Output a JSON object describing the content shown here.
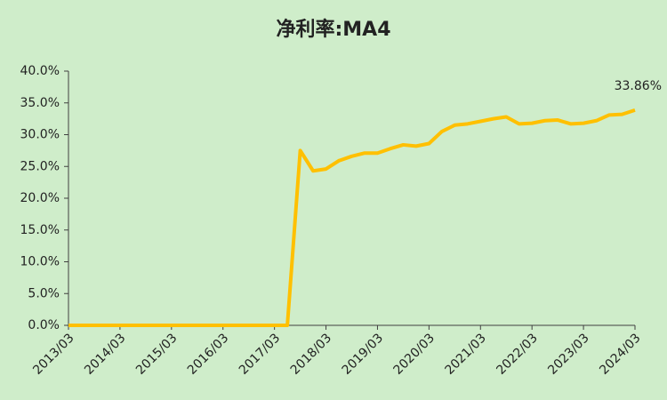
{
  "chart_data": {
    "type": "line",
    "title": "净利率:MA4",
    "categories": [
      "2013/03",
      null,
      null,
      null,
      "2014/03",
      null,
      null,
      null,
      "2015/03",
      null,
      null,
      null,
      "2016/03",
      null,
      null,
      null,
      "2017/03",
      null,
      null,
      null,
      "2018/03",
      null,
      null,
      null,
      "2019/03",
      null,
      null,
      null,
      "2020/03",
      null,
      null,
      null,
      "2021/03",
      null,
      null,
      null,
      "2022/03",
      null,
      null,
      null,
      "2023/03",
      null,
      null,
      null,
      "2024/03"
    ],
    "series": [
      {
        "name": "净利率:MA4",
        "color": "#ffc000",
        "values": [
          0,
          0,
          0,
          0,
          0,
          0,
          0,
          0,
          0,
          0,
          0,
          0,
          0,
          0,
          0,
          0,
          0,
          0,
          27.5,
          24.3,
          24.6,
          25.9,
          26.6,
          27.1,
          27.1,
          27.8,
          28.4,
          28.2,
          28.6,
          30.5,
          31.5,
          31.7,
          32.1,
          32.5,
          32.8,
          31.7,
          31.8,
          32.2,
          32.3,
          31.7,
          31.8,
          32.2,
          33.1,
          33.2,
          33.86
        ],
        "value_labels": [
          null,
          null,
          null,
          null,
          null,
          null,
          null,
          null,
          null,
          null,
          null,
          null,
          null,
          null,
          null,
          null,
          null,
          null,
          null,
          null,
          null,
          null,
          null,
          null,
          null,
          null,
          null,
          null,
          null,
          null,
          null,
          null,
          null,
          null,
          null,
          null,
          null,
          null,
          null,
          null,
          null,
          null,
          null,
          null,
          "33.86%"
        ]
      }
    ],
    "ylim": [
      0,
      40
    ],
    "yticks": [
      {
        "value": 0,
        "label": "0.0%"
      },
      {
        "value": 5,
        "label": "5.0%"
      },
      {
        "value": 10,
        "label": "10.0%"
      },
      {
        "value": 15,
        "label": "15.0%"
      },
      {
        "value": 20,
        "label": "20.0%"
      },
      {
        "value": 25,
        "label": "25.0%"
      },
      {
        "value": 30,
        "label": "30.0%"
      },
      {
        "value": 35,
        "label": "35.0%"
      },
      {
        "value": 40,
        "label": "40.0%"
      }
    ],
    "background": "#cfedca",
    "axis_color": "#404040"
  }
}
